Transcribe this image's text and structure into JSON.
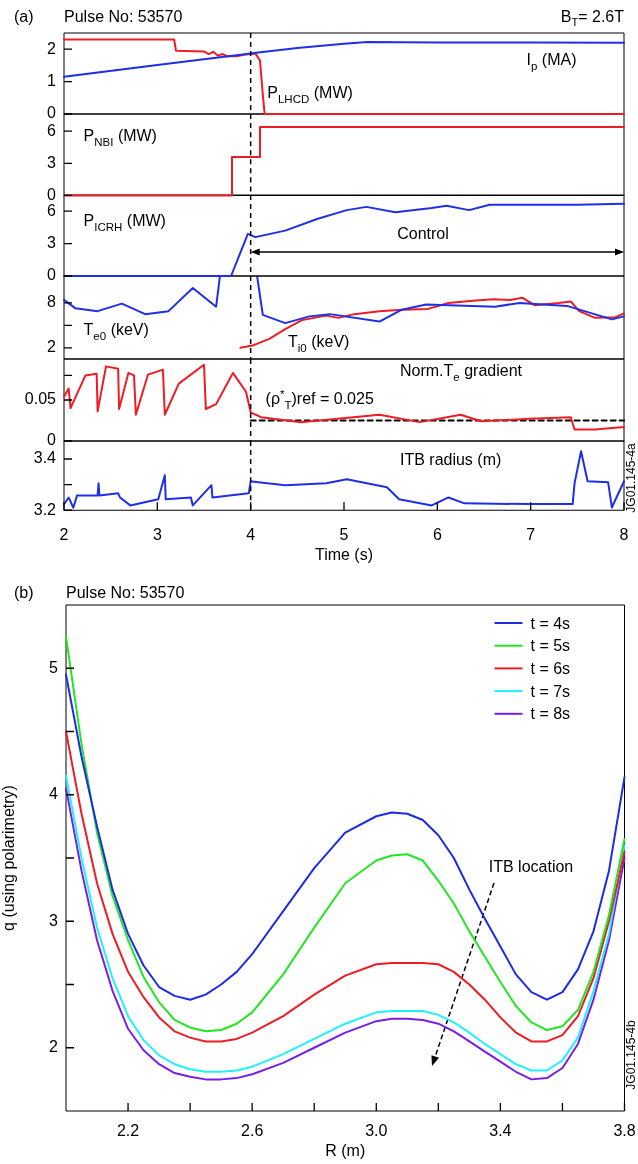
{
  "chart_data": [
    {
      "type": "line",
      "title": "Pulse No: 53570",
      "annotations": [
        "(a)",
        "B$_{T}$= 2.6T"
      ],
      "xlim": [
        2,
        8
      ],
      "xticks": [
        2,
        3,
        4,
        5,
        6,
        7,
        8
      ],
      "ylim": [
        0,
        2.5
      ],
      "yticks": [
        0,
        1,
        2
      ],
      "tick_labels": "y",
      "ref_lines": [
        {
          "axis": "x",
          "value": 4,
          "color": "#000000",
          "line_style": "dashed"
        }
      ],
      "series": [
        {
          "name": "I$_{p}$ (MA)",
          "color": "#1f2fe8",
          "x": [
            2,
            3,
            4,
            4.5,
            5,
            5.25,
            6,
            7,
            8
          ],
          "values": [
            1.15,
            1.51,
            1.87,
            2.04,
            2.17,
            2.22,
            2.21,
            2.21,
            2.2
          ]
        },
        {
          "name": "P$_{LHCD}$ (MW)",
          "color": "#ee1c24",
          "x": [
            2,
            3.18,
            3.2,
            3.5,
            3.55,
            3.6,
            3.65,
            3.7,
            3.75,
            3.85,
            3.95,
            4.05,
            4.1,
            4.13,
            4.15,
            8
          ],
          "values": [
            2.3,
            2.3,
            1.95,
            1.93,
            1.85,
            1.92,
            1.8,
            1.85,
            1.78,
            1.78,
            1.84,
            1.87,
            1.65,
            0.6,
            0,
            0
          ]
        }
      ]
    },
    {
      "type": "step",
      "xlim": [
        2,
        8
      ],
      "xticks": [
        2,
        3,
        4,
        5,
        6,
        7,
        8
      ],
      "ylim": [
        0,
        7.6
      ],
      "yticks": [
        0,
        3,
        6
      ],
      "tick_labels": "y",
      "ref_lines": [
        {
          "axis": "x",
          "value": 4,
          "color": "#000000",
          "line_style": "dashed"
        }
      ],
      "series": [
        {
          "name": "P$_{NBI}$ (MW)",
          "color": "#ee1c24",
          "x": [
            2,
            3.8,
            4.1,
            8
          ],
          "values": [
            0,
            3.6,
            6.4,
            6.4
          ]
        }
      ]
    },
    {
      "type": "line",
      "annotations": [
        "Control"
      ],
      "xlim": [
        2,
        8
      ],
      "xticks": [
        2,
        3,
        4,
        5,
        6,
        7,
        8
      ],
      "ylim": [
        0,
        7.5
      ],
      "yticks": [
        0,
        3,
        6
      ],
      "tick_labels": "y",
      "ref_lines": [
        {
          "axis": "x",
          "value": 4,
          "color": "#000000",
          "line_style": "dashed"
        }
      ],
      "series": [
        {
          "name": "P$_{ICRH}$ (MW)",
          "color": "#1f2fe8",
          "x": [
            2,
            3.79,
            3.97,
            4.05,
            4.37,
            4.72,
            5.03,
            5.24,
            5.55,
            5.94,
            6.1,
            6.34,
            6.56,
            7,
            7.5,
            8
          ],
          "values": [
            0,
            0,
            3.9,
            3.6,
            4.2,
            5.3,
            6.1,
            6.4,
            5.9,
            6.3,
            6.5,
            6.1,
            6.6,
            6.6,
            6.6,
            6.7
          ]
        }
      ]
    },
    {
      "type": "line",
      "xlim": [
        2,
        8
      ],
      "xticks": [
        2,
        3,
        4,
        5,
        6,
        7,
        8
      ],
      "ylim": [
        0.5,
        11.6
      ],
      "yticks": [
        2,
        {
          "value": 5,
          "label": null
        },
        8
      ],
      "tick_labels": "y",
      "ref_lines": [
        {
          "axis": "x",
          "value": 4,
          "color": "#000000",
          "line_style": "dashed"
        }
      ],
      "series": [
        {
          "name": "T$_{e0}$ (keV)",
          "color": "#1f2fe8",
          "x": [
            2,
            2.12,
            2.36,
            2.62,
            2.87,
            3.12,
            3.38,
            3.63,
            3.67,
            3.8,
            4.07,
            4.13,
            4.37,
            4.63,
            4.85,
            5.38,
            5.62,
            5.88,
            6.62,
            6.88,
            7.39,
            7.87,
            8
          ],
          "values": [
            8.4,
            7.3,
            6.9,
            7.9,
            6.5,
            6.9,
            10.0,
            7.5,
            11.5,
            null,
            11.5,
            6.4,
            5.3,
            6.2,
            6.5,
            5.5,
            7.1,
            7.8,
            7.5,
            8.0,
            7.6,
            5.8,
            6.2
          ]
        },
        {
          "name": "T$_{i0}$ (keV)",
          "color": "#ee1c24",
          "x": [
            3.89,
            4.02,
            4.2,
            4.37,
            4.55,
            4.81,
            4.94,
            5.11,
            5.38,
            5.62,
            5.9,
            6.12,
            6.38,
            6.6,
            6.78,
            6.91,
            7.04,
            7.3,
            7.43,
            7.52,
            7.69,
            7.91,
            8
          ],
          "values": [
            2.0,
            2.3,
            3.2,
            4.5,
            5.7,
            6.3,
            6.0,
            6.5,
            6.9,
            7.1,
            7.2,
            8.0,
            8.3,
            8.5,
            8.4,
            8.7,
            7.7,
            8.0,
            8.2,
            6.9,
            6.0,
            6.1,
            6.6
          ]
        }
      ]
    },
    {
      "type": "line",
      "xlim": [
        2,
        8
      ],
      "xticks": [
        2,
        3,
        4,
        5,
        6,
        7,
        8
      ],
      "ylim": [
        0,
        0.1
      ],
      "yticks": [
        0,
        0.05,
        {
          "value": 0.08,
          "label": null
        }
      ],
      "tick_labels": "y",
      "ref_lines": [
        {
          "axis": "x",
          "value": 4,
          "color": "#000000",
          "line_style": "dashed"
        }
      ],
      "series": [
        {
          "name": "Norm.T$_{e}$ gradient",
          "color": "#ee1c24",
          "x": [
            2,
            2.05,
            2.07,
            2.23,
            2.35,
            2.36,
            2.45,
            2.58,
            2.59,
            2.69,
            2.75,
            2.77,
            2.9,
            3.06,
            3.08,
            3.23,
            3.5,
            3.52,
            3.63,
            3.81,
            3.95,
            4.0,
            4.11,
            4.54,
            5.38,
            5.81,
            6.25,
            6.47,
            6.99,
            7.43,
            7.47,
            7.69,
            8
          ],
          "values": [
            0.054,
            0.064,
            0.04,
            0.08,
            0.082,
            0.036,
            0.091,
            0.088,
            0.039,
            0.083,
            0.08,
            0.032,
            0.081,
            0.087,
            0.032,
            0.07,
            0.093,
            0.039,
            0.045,
            0.083,
            0.06,
            0.035,
            0.029,
            0.023,
            0.032,
            0.023,
            0.032,
            0.024,
            0.027,
            0.029,
            0.014,
            0.014,
            0.017
          ]
        },
        {
          "name": "(ρ$^{*}$$_{T}$)ref = 0.025",
          "color": "#000000",
          "line_style": "dashed",
          "x": [
            4,
            8
          ],
          "values": [
            0.025,
            0.025
          ]
        }
      ]
    },
    {
      "type": "line",
      "xlabel": "Time (s)",
      "annotations": [
        "JG01.145-4a"
      ],
      "xlim": [
        2,
        8
      ],
      "xticks": [
        2,
        3,
        4,
        5,
        6,
        7,
        8
      ],
      "ylim": [
        3.2,
        3.47
      ],
      "yticks": [
        3.2,
        {
          "value": 3.3,
          "label": null
        },
        3.4
      ],
      "ref_lines": [
        {
          "axis": "x",
          "value": 4,
          "color": "#000000",
          "line_style": "dashed"
        }
      ],
      "series": [
        {
          "name": "ITB radius (m)",
          "color": "#1f2fe8",
          "x": [
            2,
            2.05,
            2.1,
            2.14,
            2.36,
            2.37,
            2.38,
            2.58,
            2.6,
            2.71,
            3.01,
            3.08,
            3.09,
            3.36,
            3.38,
            3.58,
            3.59,
            3.98,
            4.0,
            4.37,
            4.81,
            5.03,
            5.46,
            5.59,
            5.94,
            6.12,
            6.29,
            6.99,
            7.45,
            7.47,
            7.54,
            7.61,
            7.83,
            7.87,
            8
          ],
          "values": [
            3.224,
            3.25,
            3.21,
            3.258,
            3.258,
            3.305,
            3.258,
            3.266,
            3.25,
            3.219,
            3.243,
            3.337,
            3.243,
            3.25,
            3.219,
            3.298,
            3.25,
            3.266,
            3.313,
            3.298,
            3.305,
            3.321,
            3.29,
            3.243,
            3.219,
            3.25,
            3.227,
            3.224,
            3.224,
            3.305,
            3.43,
            3.313,
            3.309,
            3.211,
            3.313
          ]
        }
      ]
    },
    {
      "type": "line",
      "title": "Pulse No: 53570",
      "xlabel": "R (m)",
      "ylabel": "q (using polarimetry)",
      "annotations": [
        "(b)",
        "ITB location",
        "JG01.145-4b"
      ],
      "legend": "top right",
      "xlim": [
        2.0,
        3.8
      ],
      "xticks": [
        2.2,
        {
          "value": 2.4,
          "label": null
        },
        2.6,
        {
          "value": 2.8,
          "label": null
        },
        {
          "value": 3.0,
          "label": "3.0"
        },
        {
          "value": 3.2,
          "label": null
        },
        3.4,
        {
          "value": 3.6,
          "label": null
        },
        3.8
      ],
      "ylim": [
        1.5,
        5.5
      ],
      "yticks": [
        2,
        {
          "value": 2.5,
          "label": null
        },
        3,
        {
          "value": 3.5,
          "label": null
        },
        4,
        {
          "value": 4.5,
          "label": null
        },
        5
      ],
      "x": [
        2.0,
        2.05,
        2.1,
        2.15,
        2.2,
        2.25,
        2.3,
        2.35,
        2.4,
        2.45,
        2.5,
        2.55,
        2.6,
        2.7,
        2.8,
        2.9,
        3.0,
        3.05,
        3.1,
        3.15,
        3.2,
        3.25,
        3.3,
        3.35,
        3.4,
        3.45,
        3.5,
        3.55,
        3.6,
        3.65,
        3.7,
        3.75,
        3.8
      ],
      "series": [
        {
          "name": "t = 4s",
          "color": "#1e2be6",
          "values": [
            4.95,
            4.3,
            3.75,
            3.25,
            2.9,
            2.65,
            2.48,
            2.41,
            2.38,
            2.42,
            2.5,
            2.6,
            2.74,
            3.08,
            3.42,
            3.7,
            3.83,
            3.86,
            3.85,
            3.8,
            3.68,
            3.5,
            3.25,
            3.02,
            2.8,
            2.58,
            2.44,
            2.38,
            2.44,
            2.62,
            2.92,
            3.4,
            4.14
          ]
        },
        {
          "name": "t = 5s",
          "color": "#22e622",
          "values": [
            5.25,
            4.4,
            3.7,
            3.2,
            2.85,
            2.56,
            2.36,
            2.22,
            2.16,
            2.13,
            2.14,
            2.19,
            2.28,
            2.58,
            2.95,
            3.3,
            3.48,
            3.52,
            3.53,
            3.48,
            3.32,
            3.14,
            2.92,
            2.72,
            2.52,
            2.33,
            2.2,
            2.14,
            2.17,
            2.3,
            2.6,
            3.05,
            3.65
          ]
        },
        {
          "name": "t = 6s",
          "color": "#ee1c24",
          "values": [
            4.5,
            3.85,
            3.3,
            2.9,
            2.6,
            2.4,
            2.24,
            2.13,
            2.08,
            2.05,
            2.05,
            2.07,
            2.12,
            2.25,
            2.42,
            2.57,
            2.66,
            2.67,
            2.67,
            2.67,
            2.66,
            2.6,
            2.5,
            2.38,
            2.24,
            2.12,
            2.05,
            2.05,
            2.1,
            2.25,
            2.55,
            3.0,
            3.55
          ]
        },
        {
          "name": "t = 7s",
          "color": "#22f0ff",
          "values": [
            4.15,
            3.5,
            2.95,
            2.55,
            2.25,
            2.06,
            1.94,
            1.87,
            1.83,
            1.81,
            1.81,
            1.82,
            1.85,
            1.95,
            2.07,
            2.19,
            2.28,
            2.29,
            2.29,
            2.29,
            2.26,
            2.2,
            2.12,
            2.03,
            1.95,
            1.87,
            1.82,
            1.82,
            1.9,
            2.08,
            2.45,
            2.9,
            3.6
          ]
        },
        {
          "name": "t = 8s",
          "color": "#7a1ee6",
          "values": [
            4.05,
            3.4,
            2.85,
            2.45,
            2.15,
            1.98,
            1.87,
            1.8,
            1.77,
            1.75,
            1.75,
            1.76,
            1.79,
            1.88,
            2.0,
            2.12,
            2.21,
            2.23,
            2.23,
            2.22,
            2.19,
            2.13,
            2.05,
            1.97,
            1.89,
            1.81,
            1.75,
            1.76,
            1.84,
            2.03,
            2.38,
            2.85,
            3.5
          ]
        }
      ]
    }
  ]
}
